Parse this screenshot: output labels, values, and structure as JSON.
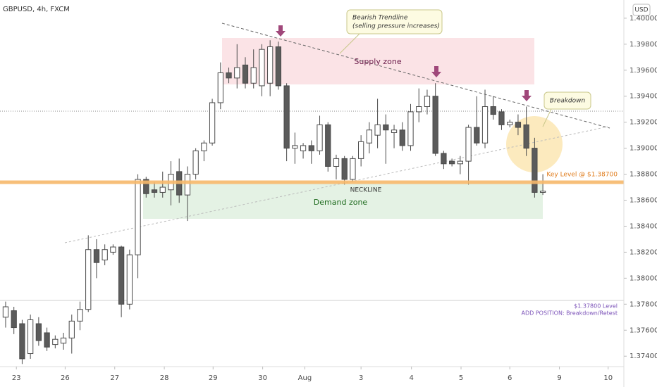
{
  "symbol": "GBPUSD, 4h, FXCM",
  "currency": "USD",
  "annotations": {
    "bearish_title": "Bearish Trendline",
    "bearish_note": "(selling pressure increases)",
    "breakdown": "Breakdown",
    "supply": "Supply zone",
    "demand": "Demand zone",
    "neckline": "NECKLINE",
    "key_level": "Key Level @ $1.38700",
    "level_note": "$1.37800 Level",
    "add_position": "ADD POSITION: Breakdown/Retest"
  },
  "chart_data": {
    "type": "candlestick",
    "up_color": "#ffffff",
    "down_color": "#5b5b5b",
    "edge_color": "#4a4a4a",
    "ylim": [
      1.3732,
      1.4014
    ],
    "yticks": [
      {
        "value": 1.4,
        "label": "1.40000"
      },
      {
        "value": 1.398,
        "label": "1.39800"
      },
      {
        "value": 1.396,
        "label": "1.39600"
      },
      {
        "value": 1.394,
        "label": "1.39400"
      },
      {
        "value": 1.392,
        "label": "1.39200"
      },
      {
        "value": 1.39,
        "label": "1.39000"
      },
      {
        "value": 1.388,
        "label": "1.38800"
      },
      {
        "value": 1.386,
        "label": "1.38600"
      },
      {
        "value": 1.384,
        "label": "1.38400"
      },
      {
        "value": 1.382,
        "label": "1.38200"
      },
      {
        "value": 1.38,
        "label": "1.38000"
      },
      {
        "value": 1.378,
        "label": "1.37800"
      },
      {
        "value": 1.376,
        "label": "1.37600"
      },
      {
        "value": 1.374,
        "label": "1.37400"
      }
    ],
    "xlim": [
      -0.68,
      74.8
    ],
    "xticks": [
      {
        "value": 1.3,
        "label": "23"
      },
      {
        "value": 7.2,
        "label": "26"
      },
      {
        "value": 13.2,
        "label": "27"
      },
      {
        "value": 19.2,
        "label": "28"
      },
      {
        "value": 25.1,
        "label": "29"
      },
      {
        "value": 31.1,
        "label": "30"
      },
      {
        "value": 36.2,
        "label": "Aug"
      },
      {
        "value": 43,
        "label": "3"
      },
      {
        "value": 49.1,
        "label": "4"
      },
      {
        "value": 55.1,
        "label": "5"
      },
      {
        "value": 61,
        "label": "6"
      },
      {
        "value": 67,
        "label": "9"
      },
      {
        "value": 72.9,
        "label": "10"
      }
    ],
    "candles": [
      {
        "open": 1.377,
        "high": 1.3782,
        "low": 1.3762,
        "close": 1.3778
      },
      {
        "open": 1.3775,
        "high": 1.3778,
        "low": 1.3757,
        "close": 1.3762
      },
      {
        "open": 1.3765,
        "high": 1.3768,
        "low": 1.3734,
        "close": 1.3738
      },
      {
        "open": 1.3742,
        "high": 1.3772,
        "low": 1.3738,
        "close": 1.3768
      },
      {
        "open": 1.3765,
        "high": 1.377,
        "low": 1.3748,
        "close": 1.3752
      },
      {
        "open": 1.3758,
        "high": 1.3762,
        "low": 1.3744,
        "close": 1.3747
      },
      {
        "open": 1.3749,
        "high": 1.3756,
        "low": 1.3746,
        "close": 1.3753
      },
      {
        "open": 1.375,
        "high": 1.3758,
        "low": 1.3745,
        "close": 1.3754
      },
      {
        "open": 1.3754,
        "high": 1.3772,
        "low": 1.3742,
        "close": 1.3767
      },
      {
        "open": 1.3767,
        "high": 1.3782,
        "low": 1.376,
        "close": 1.3776
      },
      {
        "open": 1.3776,
        "high": 1.3833,
        "low": 1.3774,
        "close": 1.3822
      },
      {
        "open": 1.3822,
        "high": 1.383,
        "low": 1.38,
        "close": 1.3812
      },
      {
        "open": 1.3814,
        "high": 1.3826,
        "low": 1.381,
        "close": 1.3822
      },
      {
        "open": 1.382,
        "high": 1.3826,
        "low": 1.3818,
        "close": 1.3824
      },
      {
        "open": 1.3824,
        "high": 1.3825,
        "low": 1.377,
        "close": 1.378
      },
      {
        "open": 1.378,
        "high": 1.3822,
        "low": 1.3776,
        "close": 1.3818
      },
      {
        "open": 1.3818,
        "high": 1.388,
        "low": 1.38,
        "close": 1.3876
      },
      {
        "open": 1.3876,
        "high": 1.3878,
        "low": 1.3862,
        "close": 1.3865
      },
      {
        "open": 1.3868,
        "high": 1.3874,
        "low": 1.3862,
        "close": 1.3866
      },
      {
        "open": 1.3866,
        "high": 1.3882,
        "low": 1.3862,
        "close": 1.387
      },
      {
        "open": 1.3868,
        "high": 1.389,
        "low": 1.3856,
        "close": 1.388
      },
      {
        "open": 1.3882,
        "high": 1.3892,
        "low": 1.3858,
        "close": 1.3864
      },
      {
        "open": 1.3864,
        "high": 1.3886,
        "low": 1.3844,
        "close": 1.388
      },
      {
        "open": 1.388,
        "high": 1.39,
        "low": 1.3876,
        "close": 1.3898
      },
      {
        "open": 1.3898,
        "high": 1.3906,
        "low": 1.389,
        "close": 1.3904
      },
      {
        "open": 1.3904,
        "high": 1.3938,
        "low": 1.3902,
        "close": 1.3935
      },
      {
        "open": 1.3935,
        "high": 1.3966,
        "low": 1.393,
        "close": 1.3958
      },
      {
        "open": 1.3958,
        "high": 1.3962,
        "low": 1.395,
        "close": 1.3954
      },
      {
        "open": 1.3954,
        "high": 1.398,
        "low": 1.3946,
        "close": 1.3962
      },
      {
        "open": 1.3964,
        "high": 1.397,
        "low": 1.3946,
        "close": 1.395
      },
      {
        "open": 1.395,
        "high": 1.3976,
        "low": 1.3946,
        "close": 1.3962
      },
      {
        "open": 1.3948,
        "high": 1.398,
        "low": 1.394,
        "close": 1.3976
      },
      {
        "open": 1.395,
        "high": 1.3983,
        "low": 1.394,
        "close": 1.3978
      },
      {
        "open": 1.3978,
        "high": 1.3982,
        "low": 1.3945,
        "close": 1.3948
      },
      {
        "open": 1.3948,
        "high": 1.395,
        "low": 1.389,
        "close": 1.39
      },
      {
        "open": 1.39,
        "high": 1.3912,
        "low": 1.3888,
        "close": 1.3902
      },
      {
        "open": 1.3898,
        "high": 1.3904,
        "low": 1.3892,
        "close": 1.3902
      },
      {
        "open": 1.3902,
        "high": 1.3906,
        "low": 1.3888,
        "close": 1.3898
      },
      {
        "open": 1.3898,
        "high": 1.3925,
        "low": 1.3895,
        "close": 1.3918
      },
      {
        "open": 1.3918,
        "high": 1.392,
        "low": 1.3882,
        "close": 1.3886
      },
      {
        "open": 1.3886,
        "high": 1.3895,
        "low": 1.3876,
        "close": 1.3892
      },
      {
        "open": 1.3892,
        "high": 1.3894,
        "low": 1.3872,
        "close": 1.3876
      },
      {
        "open": 1.3876,
        "high": 1.3894,
        "low": 1.3874,
        "close": 1.3892
      },
      {
        "open": 1.3892,
        "high": 1.391,
        "low": 1.3886,
        "close": 1.3905
      },
      {
        "open": 1.3904,
        "high": 1.392,
        "low": 1.3896,
        "close": 1.3914
      },
      {
        "open": 1.391,
        "high": 1.3938,
        "low": 1.39,
        "close": 1.3918
      },
      {
        "open": 1.3918,
        "high": 1.3926,
        "low": 1.3888,
        "close": 1.3914
      },
      {
        "open": 1.3912,
        "high": 1.3918,
        "low": 1.39,
        "close": 1.3914
      },
      {
        "open": 1.3914,
        "high": 1.392,
        "low": 1.3898,
        "close": 1.3902
      },
      {
        "open": 1.3902,
        "high": 1.3934,
        "low": 1.3898,
        "close": 1.3928
      },
      {
        "open": 1.3928,
        "high": 1.3946,
        "low": 1.392,
        "close": 1.3932
      },
      {
        "open": 1.3932,
        "high": 1.3945,
        "low": 1.3926,
        "close": 1.394
      },
      {
        "open": 1.394,
        "high": 1.395,
        "low": 1.3894,
        "close": 1.3896
      },
      {
        "open": 1.3896,
        "high": 1.3898,
        "low": 1.3884,
        "close": 1.3888
      },
      {
        "open": 1.389,
        "high": 1.3892,
        "low": 1.3886,
        "close": 1.3888
      },
      {
        "open": 1.3888,
        "high": 1.3894,
        "low": 1.388,
        "close": 1.389
      },
      {
        "open": 1.389,
        "high": 1.3918,
        "low": 1.3872,
        "close": 1.3916
      },
      {
        "open": 1.3916,
        "high": 1.394,
        "low": 1.3902,
        "close": 1.3904
      },
      {
        "open": 1.3904,
        "high": 1.3945,
        "low": 1.39,
        "close": 1.3932
      },
      {
        "open": 1.3932,
        "high": 1.394,
        "low": 1.3922,
        "close": 1.3926
      },
      {
        "open": 1.3928,
        "high": 1.393,
        "low": 1.3914,
        "close": 1.3918
      },
      {
        "open": 1.3918,
        "high": 1.3922,
        "low": 1.3916,
        "close": 1.392
      },
      {
        "open": 1.392,
        "high": 1.3926,
        "low": 1.391,
        "close": 1.3916
      },
      {
        "open": 1.3918,
        "high": 1.3932,
        "low": 1.3894,
        "close": 1.39
      },
      {
        "open": 1.39,
        "high": 1.3908,
        "low": 1.3862,
        "close": 1.3866
      },
      {
        "open": 1.3866,
        "high": 1.388,
        "low": 1.3864,
        "close": 1.3867
      }
    ]
  }
}
